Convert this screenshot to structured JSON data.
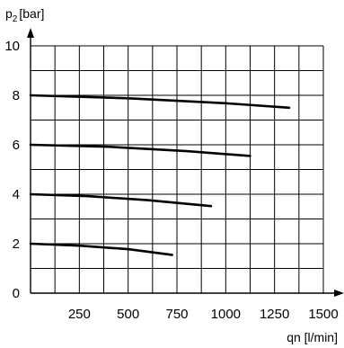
{
  "chart_data": {
    "type": "line",
    "ylabel": "p₂ [bar]",
    "ylabel_main": "p",
    "ylabel_sub": "2",
    "ylabel_unit": "[bar]",
    "xlabel": "qn [l/min]",
    "xlim": [
      0,
      1500
    ],
    "ylim": [
      0,
      10
    ],
    "x_major_step": 125,
    "y_major_step": 1,
    "grid": true,
    "x_ticks": [
      {
        "value": 250,
        "label": "250"
      },
      {
        "value": 500,
        "label": "500"
      },
      {
        "value": 750,
        "label": "750"
      },
      {
        "value": 1000,
        "label": "1000"
      },
      {
        "value": 1250,
        "label": "1250"
      },
      {
        "value": 1500,
        "label": "1500"
      }
    ],
    "y_ticks": [
      {
        "value": 0,
        "label": "0"
      },
      {
        "value": 2,
        "label": "2"
      },
      {
        "value": 4,
        "label": "4"
      },
      {
        "value": 6,
        "label": "6"
      },
      {
        "value": 8,
        "label": "8"
      },
      {
        "value": 10,
        "label": "10"
      }
    ],
    "series": [
      {
        "x": [
          0,
          250,
          500,
          725
        ],
        "y": [
          2.0,
          1.92,
          1.78,
          1.55
        ]
      },
      {
        "x": [
          0,
          300,
          600,
          925
        ],
        "y": [
          4.0,
          3.92,
          3.76,
          3.52
        ]
      },
      {
        "x": [
          0,
          400,
          800,
          1125
        ],
        "y": [
          6.0,
          5.92,
          5.74,
          5.55
        ]
      },
      {
        "x": [
          0,
          500,
          1000,
          1325
        ],
        "y": [
          8.0,
          7.88,
          7.68,
          7.5
        ]
      }
    ]
  }
}
